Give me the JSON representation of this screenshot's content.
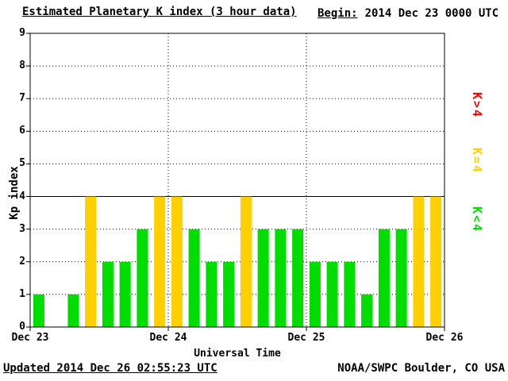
{
  "header": {
    "title": "Estimated Planetary K index (3 hour data)",
    "begin_label": "Begin:",
    "begin_value": "2014 Dec 23 0000 UTC"
  },
  "footer": {
    "updated": "Updated 2014 Dec 26 02:55:23 UTC",
    "source": "NOAA/SWPC Boulder, CO USA"
  },
  "legend": [
    {
      "label": "K>4",
      "color": "#ff0000"
    },
    {
      "label": "K=4",
      "color": "#ffd000"
    },
    {
      "label": "K<4",
      "color": "#00dd00"
    }
  ],
  "chart_data": {
    "type": "bar",
    "title": "Estimated Planetary K index (3 hour data)",
    "xlabel": "Universal Time",
    "ylabel": "Kp index",
    "ylim": [
      0,
      9
    ],
    "y_ticks": [
      0,
      1,
      2,
      3,
      4,
      5,
      6,
      7,
      8,
      9
    ],
    "x_ticks": [
      "Dec 23",
      "Dec 24",
      "Dec 25",
      "Dec 26"
    ],
    "interval_hours": 3,
    "threshold_line": 4,
    "grid": "dotted",
    "bar_colors": {
      "below4": "#00dd00",
      "equal4": "#ffd000",
      "above4": "#ff0000"
    },
    "series": [
      {
        "date": "Dec 23",
        "values": [
          1,
          0,
          1,
          4,
          2,
          2,
          3,
          4
        ]
      },
      {
        "date": "Dec 24",
        "values": [
          4,
          3,
          2,
          2,
          4,
          3,
          3,
          3
        ]
      },
      {
        "date": "Dec 25",
        "values": [
          2,
          2,
          2,
          1,
          3,
          3,
          4,
          4
        ]
      }
    ]
  }
}
